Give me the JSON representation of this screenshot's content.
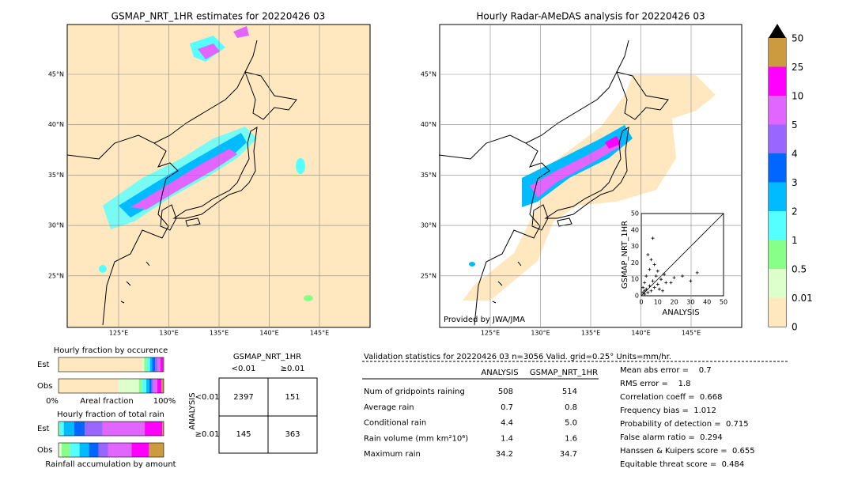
{
  "left_map": {
    "title": "GSMAP_NRT_1HR estimates for 20220426 03",
    "lon_ticks": [
      "125°E",
      "130°E",
      "135°E",
      "140°E",
      "145°E"
    ],
    "lat_ticks": [
      "45°N",
      "40°N",
      "35°N",
      "30°N",
      "25°N"
    ]
  },
  "right_map": {
    "title": "Hourly Radar-AMeDAS analysis for 20220426 03",
    "lon_ticks": [
      "125°E",
      "130°E",
      "135°E",
      "140°E",
      "145°E"
    ],
    "lat_ticks": [
      "45°N",
      "40°N",
      "35°N",
      "30°N",
      "25°N"
    ],
    "credit": "Provided by JWA/JMA"
  },
  "colorbar": {
    "labels": [
      "50",
      "25",
      "10",
      "5",
      "4",
      "3",
      "2",
      "1",
      "0.5",
      "0.01",
      "0"
    ],
    "colors": [
      "#cc9a3f",
      "#ff00ff",
      "#e066ff",
      "#9966ff",
      "#0066ff",
      "#00bbff",
      "#55ffff",
      "#88ff88",
      "#ddffcc",
      "#ffe8c0"
    ]
  },
  "scatter": {
    "type": "scatter",
    "xlabel": "ANALYSIS",
    "ylabel": "GSMAP_NRT_1HR",
    "xlim": [
      0,
      50
    ],
    "ylim": [
      0,
      50
    ],
    "xticks": [
      0,
      10,
      20,
      30,
      40,
      50
    ],
    "yticks": [
      0,
      10,
      20,
      30,
      40,
      50
    ],
    "points": [
      [
        1,
        2
      ],
      [
        2,
        1
      ],
      [
        3,
        4
      ],
      [
        4,
        2
      ],
      [
        5,
        6
      ],
      [
        6,
        3
      ],
      [
        2,
        8
      ],
      [
        7,
        9
      ],
      [
        8,
        5
      ],
      [
        9,
        12
      ],
      [
        10,
        7
      ],
      [
        11,
        4
      ],
      [
        12,
        10
      ],
      [
        13,
        3
      ],
      [
        15,
        8
      ],
      [
        3,
        12
      ],
      [
        5,
        16
      ],
      [
        6,
        22
      ],
      [
        8,
        19
      ],
      [
        10,
        15
      ],
      [
        14,
        13
      ],
      [
        18,
        8
      ],
      [
        20,
        11
      ],
      [
        25,
        12
      ],
      [
        30,
        9
      ],
      [
        34,
        14
      ],
      [
        7,
        35
      ],
      [
        4,
        25
      ],
      [
        1,
        5
      ],
      [
        2,
        3
      ]
    ]
  },
  "occurrence": {
    "title": "Hourly fraction by occurence",
    "rows": [
      {
        "name": "Est",
        "values": [
          80,
          1.5,
          2.5,
          3,
          2,
          3,
          2,
          3,
          2.5,
          0.5
        ]
      },
      {
        "name": "Obs",
        "values": [
          57,
          19.5,
          3,
          4,
          3,
          2,
          1.5,
          4,
          4,
          2
        ]
      }
    ],
    "xlabel": "Areal fraction",
    "left": "0%",
    "right": "100%"
  },
  "total_rain": {
    "title": "Hourly fraction of total rain",
    "rows": [
      {
        "name": "Est",
        "values": [
          1,
          4,
          10,
          10,
          17,
          40,
          16.5,
          1.5
        ]
      },
      {
        "name": "Obs",
        "values": [
          3,
          8,
          9,
          9,
          9,
          9,
          22.5,
          16.5,
          14
        ]
      }
    ],
    "xlabel": "Rainfall accumulation by amount"
  },
  "contingency": {
    "title": "GSMAP_NRT_1HR",
    "cols": [
      "<0.01",
      "≥0.01"
    ],
    "row_title": "ANALYSIS",
    "rows": [
      "<0.01",
      "≥0.01"
    ],
    "cells": [
      [
        "2397",
        "151"
      ],
      [
        "145",
        "363"
      ]
    ]
  },
  "stats": {
    "header": "Validation statistics for 20220426 03  n=3056 Valid. grid=0.25° Units=mm/hr.",
    "cols": [
      "ANALYSIS",
      "GSMAP_NRT_1HR"
    ],
    "rows": [
      [
        "Num of gridpoints raining",
        "508",
        "514"
      ],
      [
        "Average rain",
        "0.7",
        "0.8"
      ],
      [
        "Conditional rain",
        "4.4",
        "5.0"
      ],
      [
        "Rain volume (mm km²10⁶)",
        "1.4",
        "1.6"
      ],
      [
        "Maximum rain",
        "34.2",
        "34.7"
      ]
    ],
    "scores": [
      "Mean abs error =    0.7",
      "RMS error =    1.8",
      "Correlation coeff =  0.668",
      "Frequency bias =  1.012",
      "Probability of detection =  0.715",
      "False alarm ratio =  0.294",
      "Hanssen & Kuipers score =  0.655",
      "Equitable threat score =  0.484"
    ]
  }
}
